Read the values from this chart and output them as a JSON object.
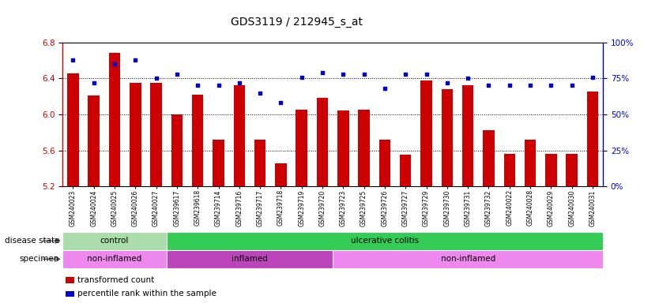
{
  "title": "GDS3119 / 212945_s_at",
  "samples": [
    "GSM240023",
    "GSM240024",
    "GSM240025",
    "GSM240026",
    "GSM240027",
    "GSM239617",
    "GSM239618",
    "GSM239714",
    "GSM239716",
    "GSM239717",
    "GSM239718",
    "GSM239719",
    "GSM239720",
    "GSM239723",
    "GSM239725",
    "GSM239726",
    "GSM239727",
    "GSM239729",
    "GSM239730",
    "GSM239731",
    "GSM239732",
    "GSM240022",
    "GSM240028",
    "GSM240029",
    "GSM240030",
    "GSM240031"
  ],
  "bar_values": [
    6.46,
    6.21,
    6.68,
    6.35,
    6.35,
    6.0,
    6.22,
    5.72,
    6.32,
    5.72,
    5.46,
    6.05,
    6.18,
    6.04,
    6.05,
    5.72,
    5.55,
    6.38,
    6.28,
    6.32,
    5.82,
    5.56,
    5.72,
    5.56,
    5.56,
    6.25
  ],
  "percentile_values": [
    88,
    72,
    85,
    88,
    75,
    78,
    70,
    70,
    72,
    65,
    58,
    76,
    79,
    78,
    78,
    68,
    78,
    78,
    72,
    75,
    70,
    70,
    70,
    70,
    70,
    76
  ],
  "ylim_left": [
    5.2,
    6.8
  ],
  "ylim_right": [
    0,
    100
  ],
  "y_ticks_left": [
    5.2,
    5.6,
    6.0,
    6.4,
    6.8
  ],
  "y_ticks_right": [
    0,
    25,
    50,
    75,
    100
  ],
  "bar_color": "#cc0000",
  "scatter_color": "#0000cc",
  "disease_state": {
    "groups": [
      {
        "label": "control",
        "start": 0,
        "end": 5,
        "color": "#aaddaa"
      },
      {
        "label": "ulcerative colitis",
        "start": 5,
        "end": 26,
        "color": "#33cc55"
      }
    ]
  },
  "specimen": {
    "groups": [
      {
        "label": "non-inflamed",
        "start": 0,
        "end": 5,
        "color": "#ee88ee"
      },
      {
        "label": "inflamed",
        "start": 5,
        "end": 13,
        "color": "#bb44bb"
      },
      {
        "label": "non-inflamed",
        "start": 13,
        "end": 26,
        "color": "#ee88ee"
      }
    ]
  },
  "row_labels": [
    "disease state",
    "specimen"
  ],
  "legend_items": [
    {
      "label": "transformed count",
      "color": "#cc0000"
    },
    {
      "label": "percentile rank within the sample",
      "color": "#0000cc"
    }
  ]
}
